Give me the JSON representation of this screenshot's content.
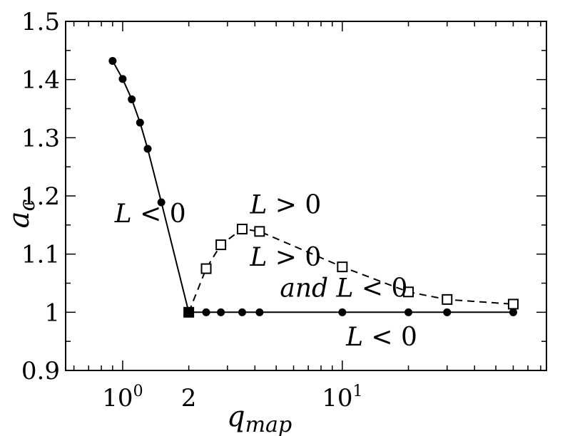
{
  "chart_data": {
    "type": "line",
    "xscale": "log",
    "xlim": [
      0.55,
      85
    ],
    "ylim": [
      0.9,
      1.5
    ],
    "xlabel": "q",
    "xlabel_sub": "map",
    "ylabel": "a",
    "ylabel_sub": "c",
    "x_ticks": [
      {
        "value": 1,
        "base": "10",
        "exp": "0"
      },
      {
        "value": 2,
        "label": "2"
      },
      {
        "value": 10,
        "base": "10",
        "exp": "1"
      }
    ],
    "y_ticks": [
      {
        "value": 0.9,
        "label": "0.9"
      },
      {
        "value": 1.0,
        "label": "1"
      },
      {
        "value": 1.1,
        "label": "1.1"
      },
      {
        "value": 1.2,
        "label": "1.2"
      },
      {
        "value": 1.3,
        "label": "1.3"
      },
      {
        "value": 1.4,
        "label": "1.4"
      },
      {
        "value": 1.5,
        "label": "1.5"
      }
    ],
    "series": [
      {
        "style": "solid",
        "marker": "filled-circle",
        "x": [
          0.9,
          1.0,
          1.1,
          1.2,
          1.3,
          1.5,
          2.0
        ],
        "y": [
          1.432,
          1.401,
          1.366,
          1.326,
          1.281,
          1.189,
          1.0
        ]
      },
      {
        "style": "solid",
        "marker": "filled-circle",
        "x": [
          2.0,
          2.4,
          2.8,
          3.5,
          4.2,
          10,
          20,
          30,
          60
        ],
        "y": [
          1.0,
          1.0,
          1.0,
          1.0,
          1.0,
          1.0,
          1.0,
          1.0,
          1.0
        ]
      },
      {
        "style": "dashed",
        "marker": "open-square",
        "x": [
          2.0,
          2.4,
          2.8,
          3.5,
          4.2,
          10,
          20,
          30,
          60
        ],
        "y": [
          1.0,
          1.075,
          1.116,
          1.143,
          1.139,
          1.078,
          1.035,
          1.022,
          1.014
        ]
      }
    ],
    "annotations": [
      {
        "parts": [
          {
            "t": "L",
            "italic": true
          },
          {
            "t": " < 0",
            "italic": false
          }
        ],
        "x": 0.92,
        "y": 1.155
      },
      {
        "parts": [
          {
            "t": "L",
            "italic": true
          },
          {
            "t": " > 0",
            "italic": false
          }
        ],
        "x": 3.8,
        "y": 1.17
      },
      {
        "parts": [
          {
            "t": "L",
            "italic": true
          },
          {
            "t": " > 0",
            "italic": false
          }
        ],
        "x": 3.8,
        "y": 1.08
      },
      {
        "parts": [
          {
            "t": "and",
            "italic": true
          },
          {
            "t": "  ",
            "italic": false
          },
          {
            "t": "L",
            "italic": true
          },
          {
            "t": " < 0",
            "italic": false
          }
        ],
        "x": 5.2,
        "y": 1.027
      },
      {
        "parts": [
          {
            "t": "L",
            "italic": true
          },
          {
            "t": " < 0",
            "italic": false
          }
        ],
        "x": 10.4,
        "y": 0.943
      }
    ]
  }
}
